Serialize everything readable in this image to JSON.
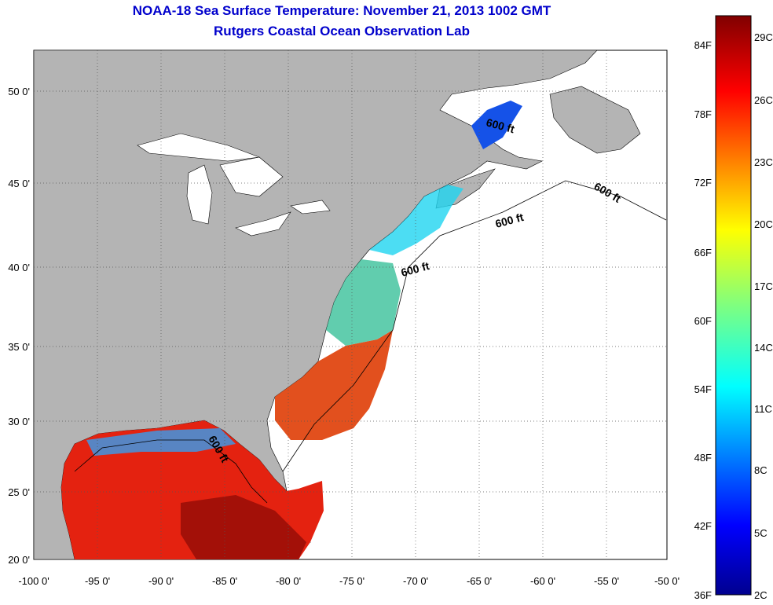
{
  "header": {
    "title": "NOAA-18 Sea Surface Temperature:  November 21, 2013 1002 GMT",
    "subtitle": "Rutgers Coastal Ocean Observation Lab"
  },
  "map": {
    "lon_labels": [
      "-100 0'",
      "-95 0'",
      "-90 0'",
      "-85 0'",
      "-80 0'",
      "-75 0'",
      "-70 0'",
      "-65 0'",
      "-60 0'",
      "-55 0'",
      "-50 0'"
    ],
    "lat_labels": [
      "50 0'",
      "45 0'",
      "40 0'",
      "35 0'",
      "30 0'",
      "25 0'",
      "20 0'"
    ],
    "contour_label": "600 ft",
    "colors": {
      "land": "#b4b4b4",
      "ocean_nodata": "#ffffff",
      "frame": "#000000",
      "grid": "#555555"
    }
  },
  "colorbar": {
    "f_labels": [
      "84F",
      "78F",
      "72F",
      "66F",
      "60F",
      "54F",
      "48F",
      "42F",
      "36F"
    ],
    "c_labels": [
      "29C",
      "26C",
      "23C",
      "20C",
      "17C",
      "14C",
      "11C",
      "8C",
      "5C",
      "2C"
    ]
  }
}
